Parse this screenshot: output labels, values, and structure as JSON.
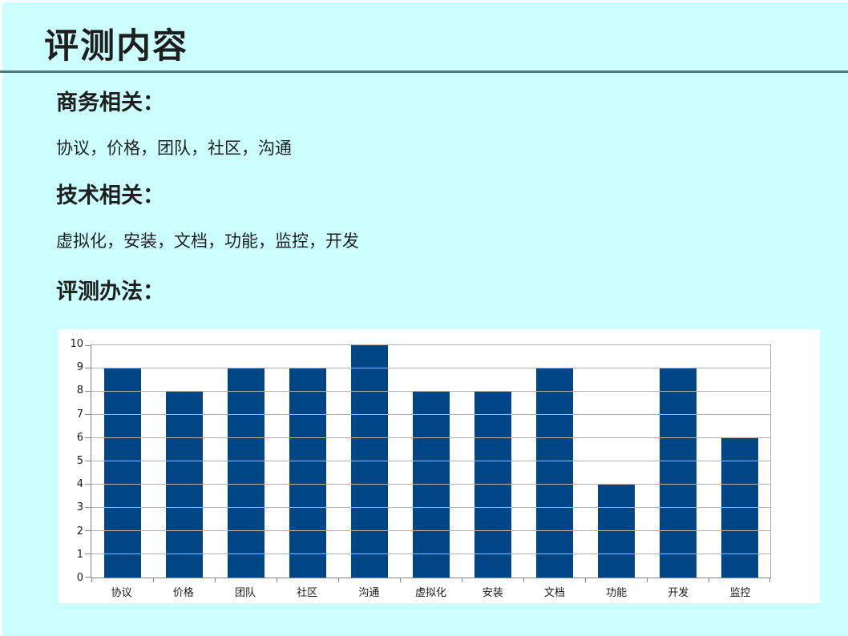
{
  "slide": {
    "title": "评测内容",
    "sections": [
      {
        "id": "business",
        "heading": "商务相关：",
        "body": "协议，价格，团队，社区，沟通"
      },
      {
        "id": "technical",
        "heading": "技术相关：",
        "body": "虚拟化，安装，文档，功能，监控，开发"
      },
      {
        "id": "method",
        "heading": "评测办法：",
        "body": ""
      }
    ]
  },
  "chart_data": {
    "type": "bar",
    "categories": [
      "协议",
      "价格",
      "团队",
      "社区",
      "沟通",
      "虚拟化",
      "安装",
      "文档",
      "功能",
      "开发",
      "监控"
    ],
    "values": [
      9,
      8,
      9,
      9,
      10,
      8,
      8,
      9,
      4,
      9,
      6
    ],
    "title": "",
    "xlabel": "",
    "ylabel": "",
    "ylim": [
      0,
      10
    ],
    "ytick_step": 1,
    "grid": true,
    "legend": false
  },
  "colors": {
    "slide_bg": "#CCFFFF",
    "text_color": "#1E1E1E",
    "divider_color": "#4E7878",
    "chart_bg": "#FFFFFF",
    "bar_color": "#004586",
    "gridline_color": "#B3B3B3",
    "axis_color": "#858585",
    "chart_text_color": "#1A1A1A"
  }
}
